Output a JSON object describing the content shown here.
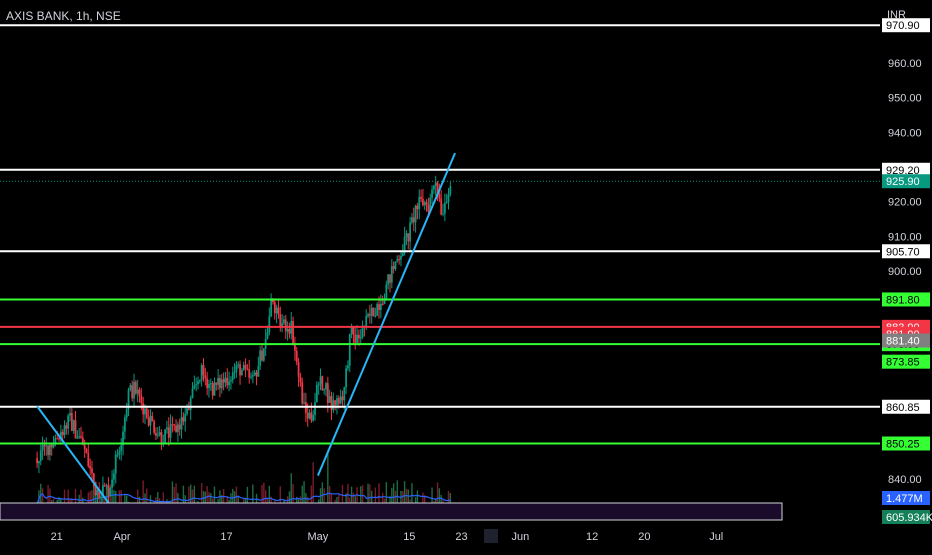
{
  "header": {
    "symbol_title": "AXIS BANK, 1h, NSE",
    "currency": "INR"
  },
  "colors": {
    "background": "#000000",
    "text": "#d1d4dc",
    "up_candle": "#089981",
    "down_candle": "#f23645",
    "volume_up": "#1e6b43",
    "volume_down": "#7a1d2a",
    "white_line": "#ffffff",
    "green_line": "#33ff33",
    "red_line": "#f23645",
    "trendline": "#29b6f6",
    "volume_ma": "#2962ff",
    "current_price_tag": "#089981",
    "volume_tag": "#2962ff",
    "volume_tag2": "#13805a",
    "last_price_badge": "#808080"
  },
  "chart_data": {
    "type": "candlestick",
    "title": "AXIS BANK, 1h, NSE",
    "ylabel": "INR",
    "ylim": [
      830,
      975
    ],
    "y_ticks": [
      "960.00",
      "950.00",
      "940.00",
      "920.00",
      "910.00",
      "900.00",
      "840.00"
    ],
    "x_ticks": [
      {
        "label": "21",
        "day": -10
      },
      {
        "label": "Apr",
        "day": 0
      },
      {
        "label": "17",
        "day": 16
      },
      {
        "label": "May",
        "day": 30
      },
      {
        "label": "15",
        "day": 44
      },
      {
        "label": "23",
        "day": 52
      },
      {
        "label": "Jun",
        "day": 61
      },
      {
        "label": "12",
        "day": 72
      },
      {
        "label": "20",
        "day": 80
      },
      {
        "label": "Jul",
        "day": 91
      }
    ],
    "horizontal_levels": [
      {
        "price": 970.9,
        "label": "970.90",
        "style": "white"
      },
      {
        "price": 929.2,
        "label": "929.20",
        "style": "white"
      },
      {
        "price": 905.7,
        "label": "905.70",
        "style": "white"
      },
      {
        "price": 891.8,
        "label": "891.80",
        "style": "green"
      },
      {
        "price": 883.9,
        "label": "883.90",
        "style": "red"
      },
      {
        "price": 878.9,
        "label": "878.90",
        "style": "green"
      },
      {
        "price": 860.85,
        "label": "860.85",
        "style": "white"
      },
      {
        "price": 850.25,
        "label": "850.25",
        "style": "green"
      }
    ],
    "price_tags": [
      {
        "price": 925.9,
        "label": "925.90",
        "style": "current"
      },
      {
        "price": 881.9,
        "label": "881.90",
        "style": "red"
      },
      {
        "price": 881.4,
        "label": "881.40",
        "style": "grey"
      },
      {
        "price": 873.85,
        "label": "873.85",
        "style": "green"
      }
    ],
    "current_price": 925.9,
    "trendlines": [
      {
        "from": {
          "day": -13,
          "price": 861
        },
        "to": {
          "day": -2,
          "price": 833
        }
      },
      {
        "from": {
          "day": 30,
          "price": 841
        },
        "to": {
          "day": 51,
          "price": 934
        }
      }
    ],
    "volume_labels": [
      "1.477M",
      "605.934K"
    ],
    "price_path": [
      {
        "day": -13,
        "price": 846
      },
      {
        "day": -10,
        "price": 852
      },
      {
        "day": -8,
        "price": 857
      },
      {
        "day": -6,
        "price": 850
      },
      {
        "day": -4,
        "price": 837
      },
      {
        "day": -2,
        "price": 837
      },
      {
        "day": 0,
        "price": 853
      },
      {
        "day": 1,
        "price": 865
      },
      {
        "day": 2,
        "price": 866
      },
      {
        "day": 4,
        "price": 858
      },
      {
        "day": 6,
        "price": 852
      },
      {
        "day": 8,
        "price": 854
      },
      {
        "day": 10,
        "price": 859
      },
      {
        "day": 12,
        "price": 871
      },
      {
        "day": 14,
        "price": 866
      },
      {
        "day": 16,
        "price": 869
      },
      {
        "day": 18,
        "price": 872
      },
      {
        "day": 20,
        "price": 868
      },
      {
        "day": 22,
        "price": 880
      },
      {
        "day": 23,
        "price": 892
      },
      {
        "day": 24,
        "price": 885
      },
      {
        "day": 26,
        "price": 884
      },
      {
        "day": 27,
        "price": 870
      },
      {
        "day": 28,
        "price": 859
      },
      {
        "day": 29,
        "price": 858
      },
      {
        "day": 30,
        "price": 867
      },
      {
        "day": 31,
        "price": 868
      },
      {
        "day": 32,
        "price": 861
      },
      {
        "day": 34,
        "price": 865
      },
      {
        "day": 35,
        "price": 882
      },
      {
        "day": 36,
        "price": 880
      },
      {
        "day": 38,
        "price": 887
      },
      {
        "day": 40,
        "price": 893
      },
      {
        "day": 42,
        "price": 903
      },
      {
        "day": 44,
        "price": 911
      },
      {
        "day": 45,
        "price": 918
      },
      {
        "day": 46,
        "price": 920
      },
      {
        "day": 47,
        "price": 919
      },
      {
        "day": 48,
        "price": 927
      },
      {
        "day": 49,
        "price": 917
      },
      {
        "day": 50,
        "price": 924
      },
      {
        "day": 50.5,
        "price": 925.9
      }
    ]
  }
}
